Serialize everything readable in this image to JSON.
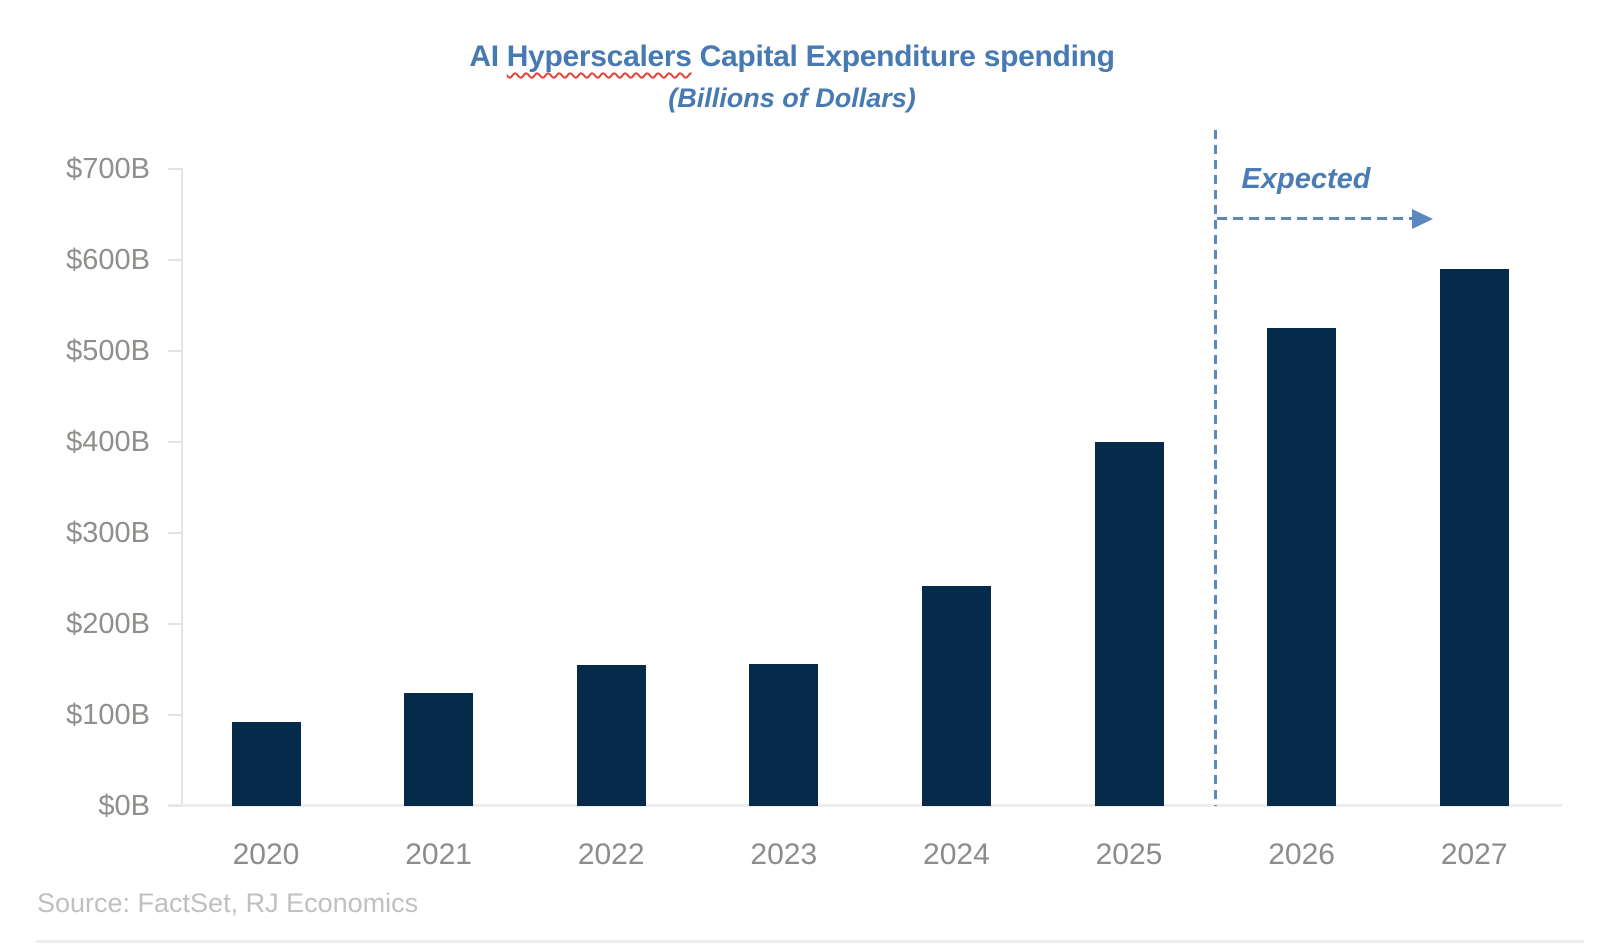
{
  "title": {
    "part1": "AI ",
    "misspelled": "Hyperscalers",
    "part3": " Capital Expenditure spending",
    "subtitle": "(Billions of Dollars)"
  },
  "annotation": {
    "label": "Expected"
  },
  "source_note": "Source: FactSet, RJ Economics",
  "colors": {
    "title_blue": "#4779B3",
    "annotation_blue": "#4A7CB5",
    "dash_blue": "#5B88BE",
    "bar_navy": "#062A49",
    "axis_text_gray": "#8F8F8B",
    "year_text_gray": "#8C8C8C",
    "source_gray": "#C0C0C0",
    "axis_line_gray": "#E4E4E4",
    "baseline_gray": "#ECECEC",
    "squiggle_red": "#E0443C"
  },
  "chart_data": {
    "type": "bar",
    "title": "AI Hyperscalers Capital Expenditure spending",
    "subtitle": "(Billions of Dollars)",
    "categories": [
      "2020",
      "2021",
      "2022",
      "2023",
      "2024",
      "2025",
      "2026",
      "2027"
    ],
    "values": [
      92,
      124,
      155,
      156,
      242,
      400,
      525,
      590
    ],
    "units": "billions of dollars",
    "ylim": [
      0,
      700
    ],
    "ytick_step": 100,
    "ytick_labels": [
      "$0B",
      "$100B",
      "$200B",
      "$300B",
      "$400B",
      "$500B",
      "$600B",
      "$700B"
    ],
    "xlabel": "",
    "ylabel": "",
    "grid": "off",
    "legend": "none",
    "expected_divider_after": "2025",
    "expected_categories": [
      "2026",
      "2027"
    ],
    "annotation": "Expected"
  }
}
